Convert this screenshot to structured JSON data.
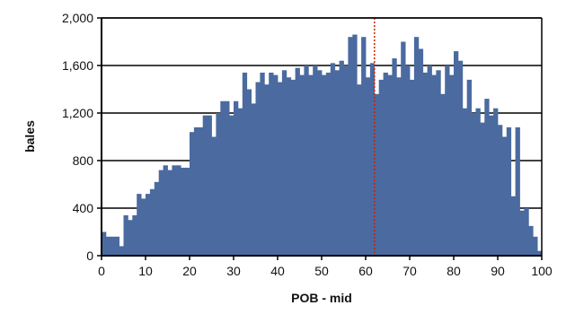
{
  "chart_data": {
    "type": "bar",
    "xlabel": "POB - mid",
    "ylabel": "bales",
    "xlim": [
      0,
      100
    ],
    "ylim": [
      0,
      2000
    ],
    "x_ticks": [
      0,
      10,
      20,
      30,
      40,
      50,
      60,
      70,
      80,
      90,
      100
    ],
    "y_ticks": [
      0,
      400,
      800,
      1200,
      1600,
      2000
    ],
    "x_tick_labels": [
      "0",
      "10",
      "20",
      "30",
      "40",
      "50",
      "60",
      "70",
      "80",
      "90",
      "100"
    ],
    "y_tick_labels": [
      "0",
      "400",
      "800",
      "1,200",
      "1,600",
      "2,000"
    ],
    "grid": "horizontal",
    "reference_line": {
      "x": 62,
      "color": "#cc2200",
      "style": "dotted"
    },
    "colors": {
      "bar": "#4a6aa0",
      "grid": "#000000",
      "axis": "#000000"
    },
    "x": [
      0,
      1,
      2,
      3,
      4,
      5,
      6,
      7,
      8,
      9,
      10,
      11,
      12,
      13,
      14,
      15,
      16,
      17,
      18,
      19,
      20,
      21,
      22,
      23,
      24,
      25,
      26,
      27,
      28,
      29,
      30,
      31,
      32,
      33,
      34,
      35,
      36,
      37,
      38,
      39,
      40,
      41,
      42,
      43,
      44,
      45,
      46,
      47,
      48,
      49,
      50,
      51,
      52,
      53,
      54,
      55,
      56,
      57,
      58,
      59,
      60,
      61,
      62,
      63,
      64,
      65,
      66,
      67,
      68,
      69,
      70,
      71,
      72,
      73,
      74,
      75,
      76,
      77,
      78,
      79,
      80,
      81,
      82,
      83,
      84,
      85,
      86,
      87,
      88,
      89,
      90,
      91,
      92,
      93,
      94,
      95,
      96,
      97,
      98,
      99
    ],
    "values": [
      200,
      160,
      160,
      160,
      80,
      340,
      300,
      340,
      520,
      480,
      520,
      560,
      620,
      720,
      760,
      720,
      760,
      760,
      740,
      740,
      1040,
      1080,
      1080,
      1180,
      1180,
      1000,
      1200,
      1300,
      1300,
      1180,
      1300,
      1240,
      1540,
      1400,
      1280,
      1460,
      1540,
      1440,
      1540,
      1520,
      1460,
      1560,
      1500,
      1480,
      1580,
      1520,
      1600,
      1520,
      1600,
      1560,
      1520,
      1540,
      1620,
      1560,
      1640,
      1600,
      1840,
      1860,
      1440,
      1840,
      1500,
      1620,
      1360,
      1480,
      1540,
      1520,
      1660,
      1500,
      1800,
      1600,
      1480,
      1840,
      1740,
      1540,
      1600,
      1520,
      1560,
      1360,
      1600,
      1520,
      1720,
      1640,
      1240,
      1480,
      1200,
      1240,
      1120,
      1320,
      1180,
      1240,
      1100,
      1000,
      1080,
      500,
      1080,
      380,
      400,
      250,
      160,
      40
    ]
  }
}
